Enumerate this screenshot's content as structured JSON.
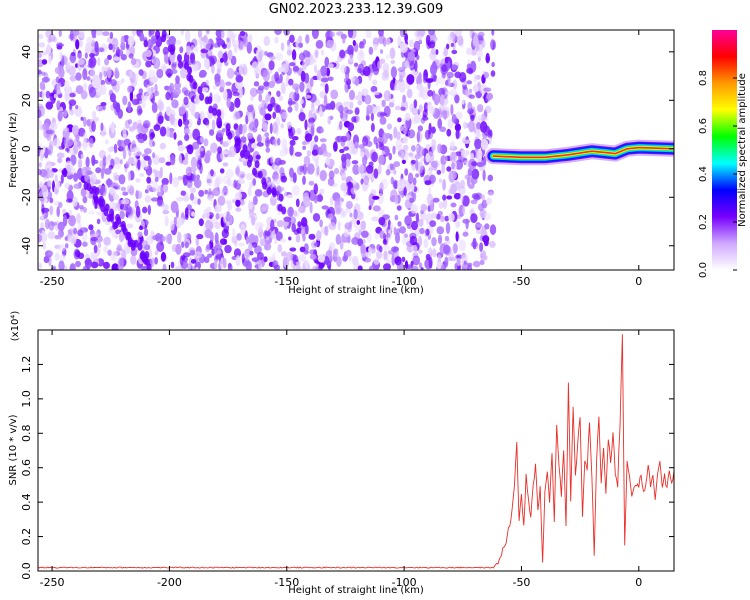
{
  "figure": {
    "title": "GN02.2023.233.12.39.G09"
  },
  "chart_data": [
    {
      "type": "heatmap",
      "xlabel": "Height of straight line (km)",
      "ylabel": "Frequency (Hz)",
      "xlim": [
        -256,
        15
      ],
      "ylim": [
        -50,
        49
      ],
      "xticks": [
        -250,
        -200,
        -150,
        -100,
        -50,
        0
      ],
      "yticks": [
        -40,
        -20,
        0,
        20,
        40
      ],
      "noise_region_x": [
        -256,
        -62
      ],
      "ridge": [
        {
          "x": -62,
          "y": -3
        },
        {
          "x": -50,
          "y": -3.5
        },
        {
          "x": -40,
          "y": -3.5
        },
        {
          "x": -30,
          "y": -2.5
        },
        {
          "x": -20,
          "y": -1
        },
        {
          "x": -10,
          "y": -2
        },
        {
          "x": -5,
          "y": 0
        },
        {
          "x": 0,
          "y": 0.5
        },
        {
          "x": 15,
          "y": 0
        }
      ],
      "streaks": [
        {
          "from": {
            "x": -205,
            "y": 48
          },
          "to": {
            "x": -150,
            "y": -25
          }
        },
        {
          "from": {
            "x": -235,
            "y": -15
          },
          "to": {
            "x": -208,
            "y": -48
          }
        }
      ],
      "colorbar": {
        "label": "Normalized spectral amplitude",
        "range": [
          0,
          1
        ],
        "ticks": [
          "0.0",
          "0.2",
          "0.4",
          "0.6",
          "0.8"
        ],
        "tick_values": [
          0,
          0.2,
          0.4,
          0.6,
          0.8
        ],
        "stops": [
          "#ffffff",
          "#cfa8ff",
          "#7700ff",
          "#0000ff",
          "#00ffff",
          "#00ff00",
          "#ffff00",
          "#ff9900",
          "#ff0000",
          "#ff0099"
        ]
      }
    },
    {
      "type": "line",
      "xlabel": "Height of straight line (km)",
      "ylabel": "SNR (10 * v/v)",
      "multiplier_label": "(x10⁴)",
      "xlim": [
        -256,
        15
      ],
      "ylim": [
        0,
        1.4
      ],
      "xticks": [
        -250,
        -200,
        -150,
        -100,
        -50,
        0
      ],
      "yticks": [
        0.0,
        0.2,
        0.4,
        0.6,
        0.8,
        1.0,
        1.2
      ],
      "ytick_labels": [
        "0.0",
        "0.2",
        "0.4",
        "0.6",
        "0.8",
        "1.0",
        "1.2"
      ],
      "series": [
        {
          "color": "#e8302a",
          "x": [
            -256,
            -62,
            -60,
            -58,
            -56,
            -54,
            -53,
            -52,
            -51,
            -50,
            -49,
            -48,
            -47,
            -46,
            -45,
            -44,
            -43,
            -42,
            -41,
            -40,
            -39,
            -38,
            -37,
            -36,
            -35,
            -34,
            -33,
            -32,
            -31,
            -30,
            -29,
            -28,
            -27,
            -26,
            -25,
            -24,
            -23,
            -22,
            -21,
            -20,
            -19,
            -18,
            -17,
            -16,
            -15,
            -14,
            -13,
            -12,
            -11,
            -10,
            -9,
            -8,
            -7,
            -6,
            -5,
            -4,
            -3,
            -2,
            -1,
            0,
            1,
            2,
            3,
            4,
            5,
            6,
            7,
            8,
            9,
            10,
            11,
            12,
            13,
            14,
            15
          ],
          "y": [
            0.02,
            0.02,
            0.05,
            0.12,
            0.2,
            0.35,
            0.5,
            0.73,
            0.3,
            0.45,
            0.25,
            0.55,
            0.4,
            0.3,
            0.5,
            0.62,
            0.35,
            0.5,
            0.05,
            0.45,
            0.58,
            0.4,
            0.7,
            0.3,
            0.85,
            0.6,
            0.45,
            0.72,
            0.25,
            1.08,
            0.4,
            0.95,
            0.55,
            0.75,
            0.9,
            0.3,
            0.65,
            0.6,
            0.85,
            0.55,
            0.1,
            0.65,
            0.9,
            0.5,
            0.72,
            0.45,
            0.78,
            0.62,
            0.8,
            0.55,
            0.5,
            0.85,
            1.38,
            0.15,
            0.65,
            0.55,
            0.45,
            0.5,
            0.48,
            0.5,
            0.55,
            0.45,
            0.52,
            0.6,
            0.5,
            0.55,
            0.42,
            0.58,
            0.62,
            0.5,
            0.55,
            0.48,
            0.6,
            0.52,
            0.58
          ]
        }
      ]
    }
  ]
}
